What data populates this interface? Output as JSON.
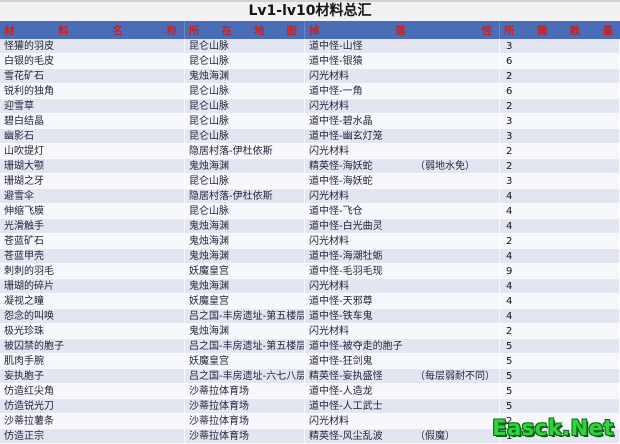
{
  "title": "Lv1-lv10材料总汇",
  "watermark": "Easck.Net",
  "colors": {
    "header_bg": "#4a6db8",
    "header_text": "#cf1f1f",
    "row_odd": "#e3e6f1",
    "row_even": "#f7f8fb",
    "watermark_green": "#31d43c"
  },
  "table": {
    "headers": [
      "材料名称",
      "所在地图",
      "掉落怪",
      "所需数量"
    ],
    "rows": [
      {
        "material": "怪獾的羽皮",
        "map": "昆仑山脉",
        "drop": "道中怪-山怪",
        "note": "",
        "qty": "3"
      },
      {
        "material": "白银的毛皮",
        "map": "昆仑山脉",
        "drop": "道中怪-银猿",
        "note": "",
        "qty": "6"
      },
      {
        "material": "雪花矿石",
        "map": "鬼烛海渊",
        "drop": "闪光材料",
        "note": "",
        "qty": "2"
      },
      {
        "material": "锐利的独角",
        "map": "昆仑山脉",
        "drop": "道中怪-一角",
        "note": "",
        "qty": "6"
      },
      {
        "material": "迎雪草",
        "map": "昆仑山脉",
        "drop": "闪光材料",
        "note": "",
        "qty": "2"
      },
      {
        "material": "碧白结晶",
        "map": "昆仑山脉",
        "drop": "道中怪-碧水晶",
        "note": "",
        "qty": "3"
      },
      {
        "material": "幽影石",
        "map": "昆仑山脉",
        "drop": "道中怪-幽玄灯笼",
        "note": "",
        "qty": "3"
      },
      {
        "material": "山吹提灯",
        "map": "隐居村落-伊杜依斯",
        "drop": "闪光材料",
        "note": "",
        "qty": "2"
      },
      {
        "material": "珊瑚大颚",
        "map": "鬼烛海渊",
        "drop": "精英怪-海妖蛇",
        "note": "（弱地水免）",
        "qty": "2"
      },
      {
        "material": "珊瑚之牙",
        "map": "昆仑山脉",
        "drop": "道中怪-海妖蛇",
        "note": "",
        "qty": "3"
      },
      {
        "material": "避雪伞",
        "map": "隐居村落-伊杜依斯",
        "drop": "闪光材料",
        "note": "",
        "qty": "4"
      },
      {
        "material": "伸缩飞膜",
        "map": "昆仑山脉",
        "drop": "道中怪-飞仓",
        "note": "",
        "qty": "4"
      },
      {
        "material": "光滑触手",
        "map": "鬼烛海渊",
        "drop": "道中怪-白光曲灵",
        "note": "",
        "qty": "4"
      },
      {
        "material": "苍蓝矿石",
        "map": "鬼烛海渊",
        "drop": "闪光材料",
        "note": "",
        "qty": "2"
      },
      {
        "material": "苍蓝甲壳",
        "map": "鬼烛海渊",
        "drop": "道中怪-海潮牡蛎",
        "note": "",
        "qty": "4"
      },
      {
        "material": "刺刺的羽毛",
        "map": "妖魔皇宫",
        "drop": "道中怪-毛羽毛现",
        "note": "",
        "qty": "9"
      },
      {
        "material": "珊瑚的碎片",
        "map": "鬼烛海渊",
        "drop": "闪光材料",
        "note": "",
        "qty": "4"
      },
      {
        "material": "凝视之瞳",
        "map": "妖魔皇宫",
        "drop": "道中怪-天邪尊",
        "note": "",
        "qty": "4"
      },
      {
        "material": "怨念的叫唤",
        "map": "吕之国-丰房遗址-第五楼层",
        "drop": "道中怪-铁车鬼",
        "note": "",
        "qty": "4"
      },
      {
        "material": "极光珍珠",
        "map": "鬼烛海渊",
        "drop": "闪光材料",
        "note": "",
        "qty": "2"
      },
      {
        "material": "被囚禁的胞子",
        "map": "吕之国-丰房遗址-第五楼层",
        "drop": "道中怪-被夺走的胞子",
        "note": "",
        "qty": "5"
      },
      {
        "material": "肌肉手腕",
        "map": "妖魔皇宫",
        "drop": "道中怪-狂剑鬼",
        "note": "",
        "qty": "5"
      },
      {
        "material": "妄执胞子",
        "map": "吕之国-丰房遗址-六七八层",
        "drop": "精英怪-妄执盛怪",
        "note": "（每层弱耐不同）",
        "qty": "5"
      },
      {
        "material": "仿造红尖角",
        "map": "沙蒂拉体育场",
        "drop": "道中怪-人造龙",
        "note": "",
        "qty": "5"
      },
      {
        "material": "仿造锐光刀",
        "map": "沙蒂拉体育场",
        "drop": "道中怪-人工武士",
        "note": "",
        "qty": "5"
      },
      {
        "material": "沙蒂拉薯条",
        "map": "沙蒂拉体育场",
        "drop": "闪光材料",
        "note": "",
        "qty": "2"
      },
      {
        "material": "仿造正宗",
        "map": "沙蒂拉体育场",
        "drop": "精英怪-风尘乱波",
        "note": "（假魔）",
        "qty": "1"
      }
    ]
  }
}
